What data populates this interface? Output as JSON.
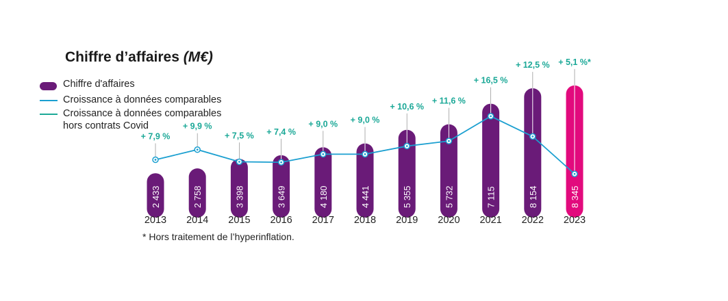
{
  "title_main": "Chiffre d’affaires",
  "title_unit": "(M€)",
  "legend": [
    {
      "label": "Chiffre d'affaires",
      "color": "#6a1b78"
    },
    {
      "label": "Croissance à données comparables",
      "color": "#1a9fd0"
    },
    {
      "label": "Croissance à données comparables\nhors contrats Covid",
      "color": "#1ba897"
    }
  ],
  "footnote": "* Hors traitement de l’hyperinflation.",
  "colors": {
    "bar": "#6a1b78",
    "bar_highlight": "#e20a7d",
    "line": "#1a9fd0",
    "growth_label": "#1ba897",
    "text": "#222222"
  },
  "chart_data": {
    "type": "bar",
    "categories": [
      "2013",
      "2014",
      "2015",
      "2016",
      "2017",
      "2018",
      "2019",
      "2020",
      "2021",
      "2022",
      "2023"
    ],
    "series": [
      {
        "name": "Chiffre d'affaires",
        "values": [
          2433,
          2758,
          3398,
          3649,
          4180,
          4441,
          5355,
          5732,
          7115,
          8154,
          8345
        ],
        "value_labels": [
          "2 433",
          "2 758",
          "3 398",
          "3 649",
          "4 180",
          "4 441",
          "5 355",
          "5 732",
          "7 115",
          "8 154",
          "8 345"
        ]
      },
      {
        "name": "Croissance à données comparables",
        "type": "line",
        "values": [
          7.9,
          9.9,
          7.5,
          7.4,
          9.0,
          9.0,
          10.6,
          11.6,
          16.5,
          12.5,
          5.1
        ]
      }
    ],
    "growth_labels": [
      "+ 7,9 %",
      "+ 9,9 %",
      "+ 7,5 %",
      "+ 7,4 %",
      "+ 9,0 %",
      "+ 9,0 %",
      "+ 10,6 %",
      "+ 11,6 %",
      "+ 16,5 %",
      "+ 12,5 %",
      "+ 5,1 %*"
    ],
    "highlight_index": 10
  }
}
